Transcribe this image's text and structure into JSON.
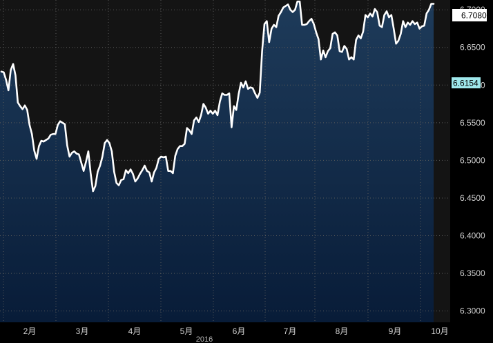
{
  "chart_data": {
    "type": "area",
    "title": "",
    "xlabel": "",
    "ylabel": "",
    "year_label": "2016",
    "x_tick_labels": [
      "2月",
      "3月",
      "4月",
      "5月",
      "6月",
      "7月",
      "8月",
      "9月",
      "10月"
    ],
    "y_tick_labels": [
      "6.7000",
      "6.6500",
      "6.6000",
      "6.5500",
      "6.5000",
      "6.4500",
      "6.4000",
      "6.3500",
      "6.3000"
    ],
    "y_ticks": [
      6.7,
      6.65,
      6.6,
      6.55,
      6.5,
      6.45,
      6.4,
      6.35,
      6.3
    ],
    "ylim": [
      6.285,
      6.713
    ],
    "last_value_label": "6.7080",
    "reference_value_label": "6.6154",
    "grid": true,
    "colors": {
      "background_upper": "#141414",
      "area_top": "#1e3b5a",
      "area_bottom": "#081c38",
      "line": "#ffffff",
      "last_tag_bg": "#ffffff",
      "ref_tag_bg": "#9fe8ec"
    },
    "series": [
      {
        "values": [
          6.618,
          6.617,
          6.607,
          6.593,
          6.62,
          6.628,
          6.613,
          6.577,
          6.572,
          6.568,
          6.573,
          6.567,
          6.547,
          6.535,
          6.513,
          6.502,
          6.519,
          6.526,
          6.525,
          6.527,
          6.529,
          6.534,
          6.535,
          6.535,
          6.547,
          6.552,
          6.55,
          6.548,
          6.52,
          6.505,
          6.51,
          6.512,
          6.509,
          6.508,
          6.497,
          6.486,
          6.498,
          6.512,
          6.483,
          6.459,
          6.466,
          6.485,
          6.493,
          6.505,
          6.523,
          6.527,
          6.523,
          6.512,
          6.485,
          6.47,
          6.467,
          6.474,
          6.475,
          6.487,
          6.483,
          6.488,
          6.482,
          6.472,
          6.476,
          6.482,
          6.487,
          6.493,
          6.486,
          6.484,
          6.472,
          6.484,
          6.49,
          6.502,
          6.505,
          6.504,
          6.505,
          6.486,
          6.486,
          6.483,
          6.506,
          6.515,
          6.519,
          6.519,
          6.522,
          6.543,
          6.54,
          6.535,
          6.553,
          6.557,
          6.551,
          6.56,
          6.575,
          6.57,
          6.562,
          6.566,
          6.562,
          6.566,
          6.56,
          6.578,
          6.589,
          6.587,
          6.587,
          6.589,
          6.544,
          6.572,
          6.567,
          6.588,
          6.603,
          6.597,
          6.605,
          6.595,
          6.597,
          6.596,
          6.589,
          6.583,
          6.59,
          6.645,
          6.681,
          6.685,
          6.657,
          6.675,
          6.68,
          6.677,
          6.692,
          6.697,
          6.703,
          6.705,
          6.707,
          6.7,
          6.697,
          6.7,
          6.711,
          6.711,
          6.68,
          6.68,
          6.681,
          6.685,
          6.688,
          6.681,
          6.67,
          6.661,
          6.634,
          6.646,
          6.637,
          6.645,
          6.649,
          6.668,
          6.67,
          6.666,
          6.645,
          6.644,
          6.652,
          6.648,
          6.634,
          6.637,
          6.634,
          6.66,
          6.666,
          6.662,
          6.671,
          6.693,
          6.69,
          6.695,
          6.691,
          6.701,
          6.697,
          6.679,
          6.677,
          6.693,
          6.698,
          6.69,
          6.693,
          6.675,
          6.655,
          6.659,
          6.668,
          6.685,
          6.677,
          6.683,
          6.68,
          6.685,
          6.681,
          6.683,
          6.675,
          6.678,
          6.679,
          6.695,
          6.7,
          6.708,
          6.708
        ]
      }
    ]
  }
}
